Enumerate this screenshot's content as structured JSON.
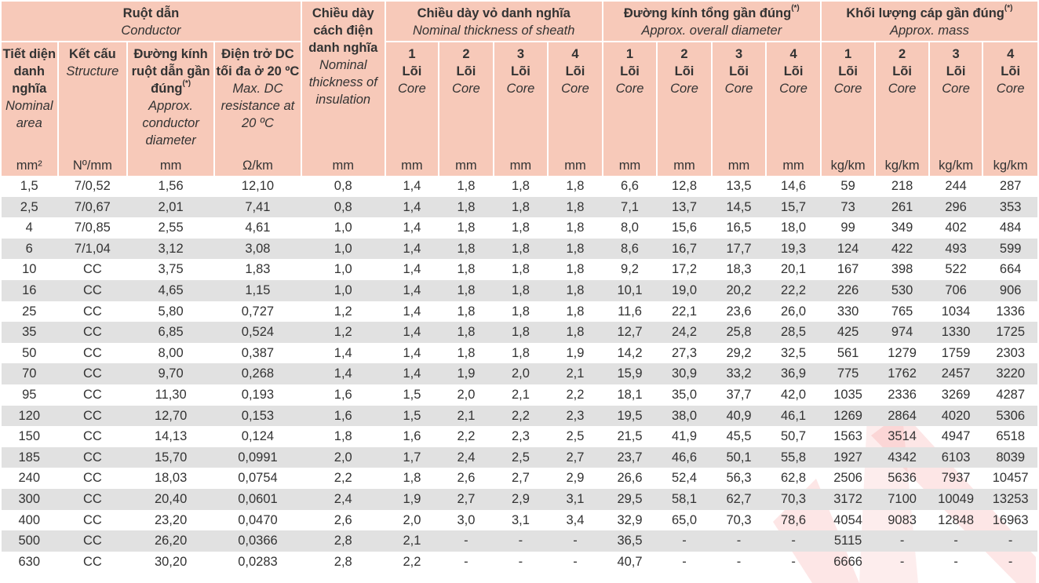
{
  "header": {
    "conductor": {
      "vi": "Ruột dẫn",
      "en": "Conductor"
    },
    "insulation": {
      "vi": "Chiều dày cách điện danh nghĩa",
      "en": "Nominal thickness of insulation"
    },
    "sheath": {
      "vi": "Chiều dày vỏ danh nghĩa",
      "en": "Nominal thickness of sheath"
    },
    "diameter": {
      "vi": "Đường kính tổng gần đúng",
      "en": "Approx. overall diameter",
      "mark": "(*)"
    },
    "mass": {
      "vi": "Khối lượng cáp gần đúng",
      "en": "Approx. mass",
      "mark": "(*)"
    },
    "area": {
      "vi": "Tiết diện danh nghĩa",
      "en": "Nominal area"
    },
    "structure": {
      "vi": "Kết cấu",
      "en": "Structure"
    },
    "cond_dia": {
      "vi": "Đường kính ruột dẫn gần đúng",
      "en": "Approx. conductor diameter",
      "mark": "(*)"
    },
    "resistance": {
      "vi": "Điện trở DC tối đa ở 20 ºC",
      "en": "Max. DC resistance at 20 ºC"
    },
    "core_label_vi": "Lõi",
    "core_label_en": "Core",
    "core_counts": [
      "1",
      "2",
      "3",
      "4"
    ]
  },
  "units": [
    "mm²",
    "Nº/mm",
    "mm",
    "Ω/km",
    "mm",
    "mm",
    "mm",
    "mm",
    "mm",
    "mm",
    "mm",
    "mm",
    "mm",
    "kg/km",
    "kg/km",
    "kg/km",
    "kg/km"
  ],
  "rows": [
    [
      "1,5",
      "7/0,52",
      "1,56",
      "12,10",
      "0,8",
      "1,4",
      "1,8",
      "1,8",
      "1,8",
      "6,6",
      "12,8",
      "13,5",
      "14,6",
      "59",
      "218",
      "244",
      "287"
    ],
    [
      "2,5",
      "7/0,67",
      "2,01",
      "7,41",
      "0,8",
      "1,4",
      "1,8",
      "1,8",
      "1,8",
      "7,1",
      "13,7",
      "14,5",
      "15,7",
      "73",
      "261",
      "296",
      "353"
    ],
    [
      "4",
      "7/0,85",
      "2,55",
      "4,61",
      "1,0",
      "1,4",
      "1,8",
      "1,8",
      "1,8",
      "8,0",
      "15,6",
      "16,5",
      "18,0",
      "99",
      "349",
      "402",
      "484"
    ],
    [
      "6",
      "7/1,04",
      "3,12",
      "3,08",
      "1,0",
      "1,4",
      "1,8",
      "1,8",
      "1,8",
      "8,6",
      "16,7",
      "17,7",
      "19,3",
      "124",
      "422",
      "493",
      "599"
    ],
    [
      "10",
      "CC",
      "3,75",
      "1,83",
      "1,0",
      "1,4",
      "1,8",
      "1,8",
      "1,8",
      "9,2",
      "17,2",
      "18,3",
      "20,1",
      "167",
      "398",
      "522",
      "664"
    ],
    [
      "16",
      "CC",
      "4,65",
      "1,15",
      "1,0",
      "1,4",
      "1,8",
      "1,8",
      "1,8",
      "10,1",
      "19,0",
      "20,2",
      "22,2",
      "226",
      "530",
      "706",
      "906"
    ],
    [
      "25",
      "CC",
      "5,80",
      "0,727",
      "1,2",
      "1,4",
      "1,8",
      "1,8",
      "1,8",
      "11,6",
      "22,1",
      "23,6",
      "26,0",
      "330",
      "765",
      "1034",
      "1336"
    ],
    [
      "35",
      "CC",
      "6,85",
      "0,524",
      "1,2",
      "1,4",
      "1,8",
      "1,8",
      "1,8",
      "12,7",
      "24,2",
      "25,8",
      "28,5",
      "425",
      "974",
      "1330",
      "1725"
    ],
    [
      "50",
      "CC",
      "8,00",
      "0,387",
      "1,4",
      "1,4",
      "1,8",
      "1,8",
      "1,9",
      "14,2",
      "27,3",
      "29,2",
      "32,5",
      "561",
      "1279",
      "1759",
      "2303"
    ],
    [
      "70",
      "CC",
      "9,70",
      "0,268",
      "1,4",
      "1,4",
      "1,9",
      "2,0",
      "2,1",
      "15,9",
      "30,9",
      "33,2",
      "36,9",
      "775",
      "1762",
      "2457",
      "3220"
    ],
    [
      "95",
      "CC",
      "11,30",
      "0,193",
      "1,6",
      "1,5",
      "2,0",
      "2,1",
      "2,2",
      "18,1",
      "35,0",
      "37,7",
      "42,0",
      "1035",
      "2336",
      "3269",
      "4287"
    ],
    [
      "120",
      "CC",
      "12,70",
      "0,153",
      "1,6",
      "1,5",
      "2,1",
      "2,2",
      "2,3",
      "19,5",
      "38,0",
      "40,9",
      "46,1",
      "1269",
      "2864",
      "4020",
      "5306"
    ],
    [
      "150",
      "CC",
      "14,13",
      "0,124",
      "1,8",
      "1,6",
      "2,2",
      "2,3",
      "2,5",
      "21,5",
      "41,9",
      "45,5",
      "50,7",
      "1563",
      "3514",
      "4947",
      "6518"
    ],
    [
      "185",
      "CC",
      "15,70",
      "0,0991",
      "2,0",
      "1,7",
      "2,4",
      "2,5",
      "2,7",
      "23,7",
      "46,6",
      "50,1",
      "55,8",
      "1927",
      "4342",
      "6103",
      "8039"
    ],
    [
      "240",
      "CC",
      "18,03",
      "0,0754",
      "2,2",
      "1,8",
      "2,6",
      "2,7",
      "2,9",
      "26,6",
      "52,4",
      "56,3",
      "62,8",
      "2506",
      "5636",
      "7937",
      "10457"
    ],
    [
      "300",
      "CC",
      "20,40",
      "0,0601",
      "2,4",
      "1,9",
      "2,7",
      "2,9",
      "3,1",
      "29,5",
      "58,1",
      "62,7",
      "70,3",
      "3172",
      "7100",
      "10049",
      "13253"
    ],
    [
      "400",
      "CC",
      "23,20",
      "0,0470",
      "2,6",
      "2,0",
      "3,0",
      "3,1",
      "3,4",
      "32,9",
      "65,0",
      "70,3",
      "78,6",
      "4054",
      "9083",
      "12848",
      "16963"
    ],
    [
      "500",
      "CC",
      "26,20",
      "0,0366",
      "2,8",
      "2,1",
      "-",
      "-",
      "-",
      "36,5",
      "-",
      "-",
      "-",
      "5115",
      "-",
      "-",
      "-"
    ],
    [
      "630",
      "CC",
      "30,20",
      "0,0283",
      "2,8",
      "2,2",
      "-",
      "-",
      "-",
      "40,7",
      "-",
      "-",
      "-",
      "6666",
      "-",
      "-",
      "-"
    ]
  ],
  "colors": {
    "header_bg": "#f7c9b9",
    "stripe_bg": "#e1e1e1",
    "watermark": "#f04e4e"
  }
}
